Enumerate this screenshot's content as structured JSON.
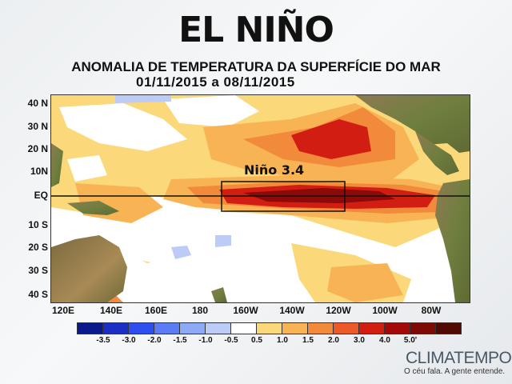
{
  "header": {
    "title": "EL NIÑO",
    "subtitle": "ANOMALIA DE TEMPERATURA DA SUPERFÍCIE DO MAR",
    "period": "01/11/2015 a 08/11/2015"
  },
  "map": {
    "region_label": "Niño 3.4",
    "latitude_labels": [
      "40 N",
      "30 N",
      "20 N",
      "10N",
      "EQ",
      "10 S",
      "20 S",
      "30 S",
      "40 S"
    ],
    "longitude_labels": [
      "120E",
      "140E",
      "160E",
      "180",
      "160W",
      "140W",
      "120W",
      "100W",
      "80W"
    ]
  },
  "legend": {
    "colors": [
      "#0a1a8c",
      "#1c2fc4",
      "#2f4ef0",
      "#5b7cf5",
      "#8ea9f6",
      "#bcccf7",
      "#ffffff",
      "#fbd87a",
      "#f8b454",
      "#f28a3c",
      "#ec5a2a",
      "#d21e12",
      "#a4090a",
      "#7c0a06",
      "#500a03"
    ],
    "tick_labels": [
      "-3.5",
      "-3.0",
      "-2.0",
      "-1.5",
      "-1.0",
      "-0.5",
      "0.5",
      "1.0",
      "1.5",
      "2.0",
      "3.0",
      "4.0",
      "5.0'"
    ]
  },
  "brand": {
    "name": "CLIMATEMPO",
    "tagline": "O céu fala. A gente entende."
  }
}
